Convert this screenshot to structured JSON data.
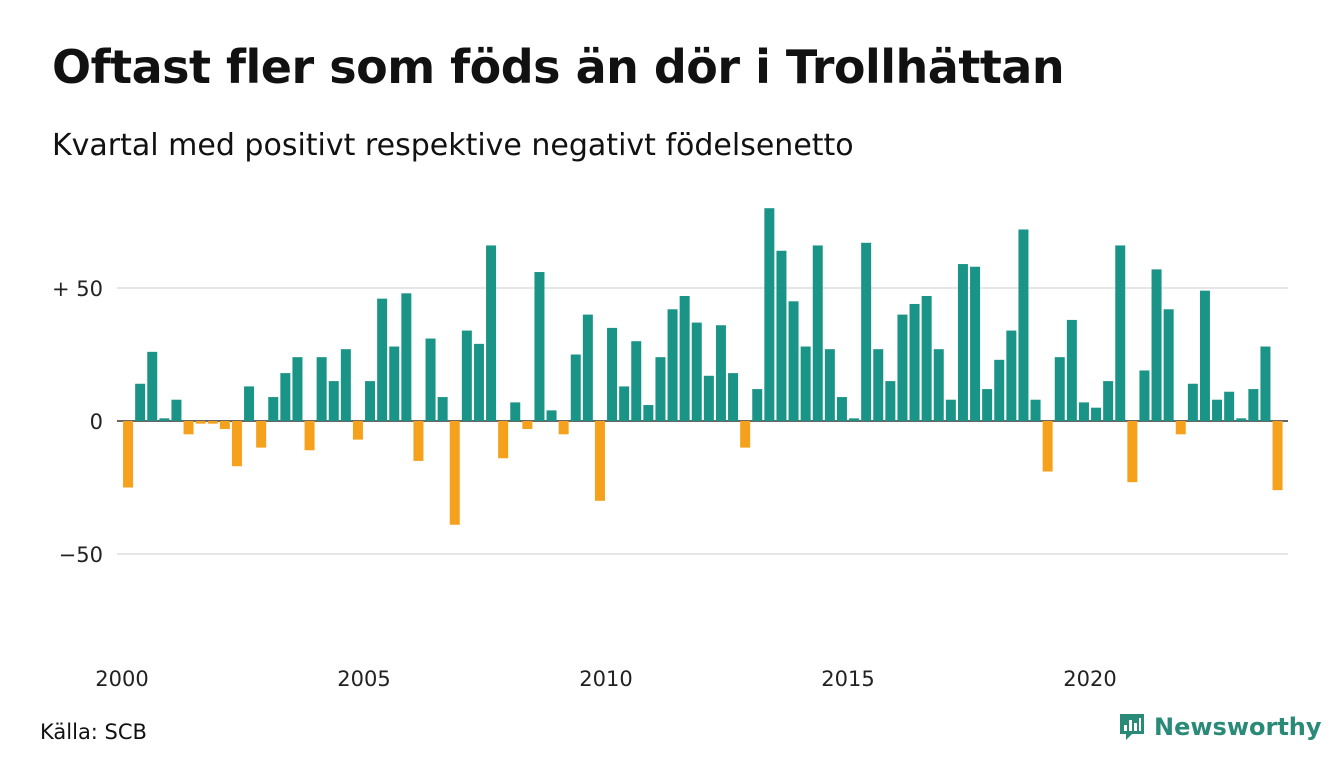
{
  "title": "Oftast fler som föds än dör i Trollhättan",
  "subtitle": "Kvartal med positivt respektive negativt födelsenetto",
  "source": "Källa: SCB",
  "brand": "Newsworthy",
  "colors": {
    "positive": "#1a9487",
    "negative": "#f5a11c",
    "grid": "#dddddd",
    "brand": "#2a8a78"
  },
  "chart_data": {
    "type": "bar",
    "xlabel": "",
    "ylabel": "",
    "ylim": [
      -75,
      80
    ],
    "yticks": [
      50,
      0,
      -50
    ],
    "ytick_labels": [
      "+ 50",
      "0",
      "−50"
    ],
    "xtick_labels": [
      "2000",
      "2005",
      "2010",
      "2015",
      "2020"
    ],
    "start_year": 2000,
    "grid": true,
    "values": [
      -25,
      14,
      26,
      1,
      8,
      -5,
      -1,
      -1,
      -3,
      -17,
      13,
      -10,
      9,
      18,
      24,
      -11,
      24,
      15,
      27,
      -7,
      15,
      46,
      28,
      48,
      -15,
      31,
      9,
      -39,
      34,
      29,
      66,
      -14,
      7,
      -3,
      56,
      4,
      -5,
      25,
      40,
      -30,
      35,
      13,
      30,
      6,
      24,
      42,
      47,
      37,
      17,
      36,
      18,
      -10,
      12,
      80,
      64,
      45,
      28,
      66,
      27,
      9,
      1,
      67,
      27,
      15,
      40,
      44,
      47,
      27,
      8,
      59,
      58,
      12,
      23,
      34,
      72,
      8,
      -19,
      24,
      38,
      7,
      5,
      15,
      66,
      -23,
      19,
      57,
      42,
      -5,
      14,
      49,
      8,
      11,
      1,
      12,
      28,
      -26
    ]
  }
}
